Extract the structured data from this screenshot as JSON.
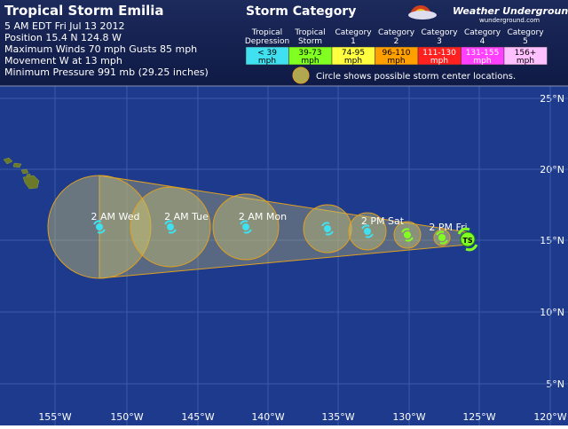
{
  "header": {
    "title": "Tropical Storm Emilia",
    "info": [
      "5 AM EDT Fri Jul 13 2012",
      "Position 15.4 N 124.8 W",
      "Maximum Winds 70 mph  Gusts 85 mph",
      "Movement W at 13 mph",
      "Minimum Pressure 991 mb (29.25 inches)"
    ]
  },
  "legend": {
    "title": "Storm Category",
    "categories": [
      {
        "name": [
          "Tropical",
          "Depression"
        ],
        "range": [
          "< 39",
          "mph"
        ]
      },
      {
        "name": [
          "Tropical",
          "Storm"
        ],
        "range": [
          "39-73",
          "mph"
        ]
      },
      {
        "name": [
          "Category",
          "1"
        ],
        "range": [
          "74-95",
          "mph"
        ]
      },
      {
        "name": [
          "Category",
          "2"
        ],
        "range": [
          "96-110",
          "mph"
        ]
      },
      {
        "name": [
          "Category",
          "3"
        ],
        "range": [
          "111-130",
          "mph"
        ]
      },
      {
        "name": [
          "Category",
          "4"
        ],
        "range": [
          "131-155",
          "mph"
        ]
      },
      {
        "name": [
          "Category",
          "5"
        ],
        "range": [
          "156+",
          "mph"
        ]
      }
    ],
    "note": "Circle shows possible storm center locations."
  },
  "logo": {
    "name": "Weather Underground",
    "url": "wunderground.com"
  },
  "map": {
    "lat_labels": [
      "25°N",
      "20°N",
      "15°N",
      "10°N",
      "5°N"
    ],
    "lon_labels": [
      "155°W",
      "150°W",
      "145°W",
      "140°W",
      "135°W",
      "130°W",
      "125°W",
      "120°W"
    ],
    "forecast_labels": [
      "2 AM Wed",
      "2 AM Tue",
      "2 AM Mon",
      "2 PM Sat",
      "2 PM Fri"
    ],
    "current_icon": "TS"
  }
}
